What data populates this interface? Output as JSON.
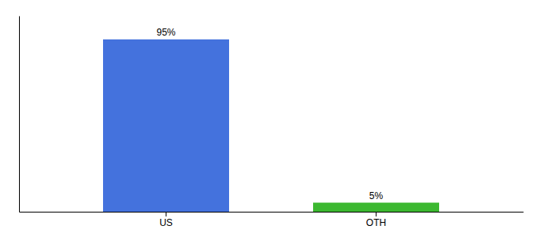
{
  "chart_data": {
    "type": "bar",
    "categories": [
      "US",
      "OTH"
    ],
    "values": [
      95,
      5
    ],
    "value_labels": [
      "95%",
      "5%"
    ],
    "colors": [
      "#4472DD",
      "#3CB830"
    ],
    "ylim": [
      0,
      108
    ],
    "data_labels": true,
    "tick_labels": "x"
  }
}
